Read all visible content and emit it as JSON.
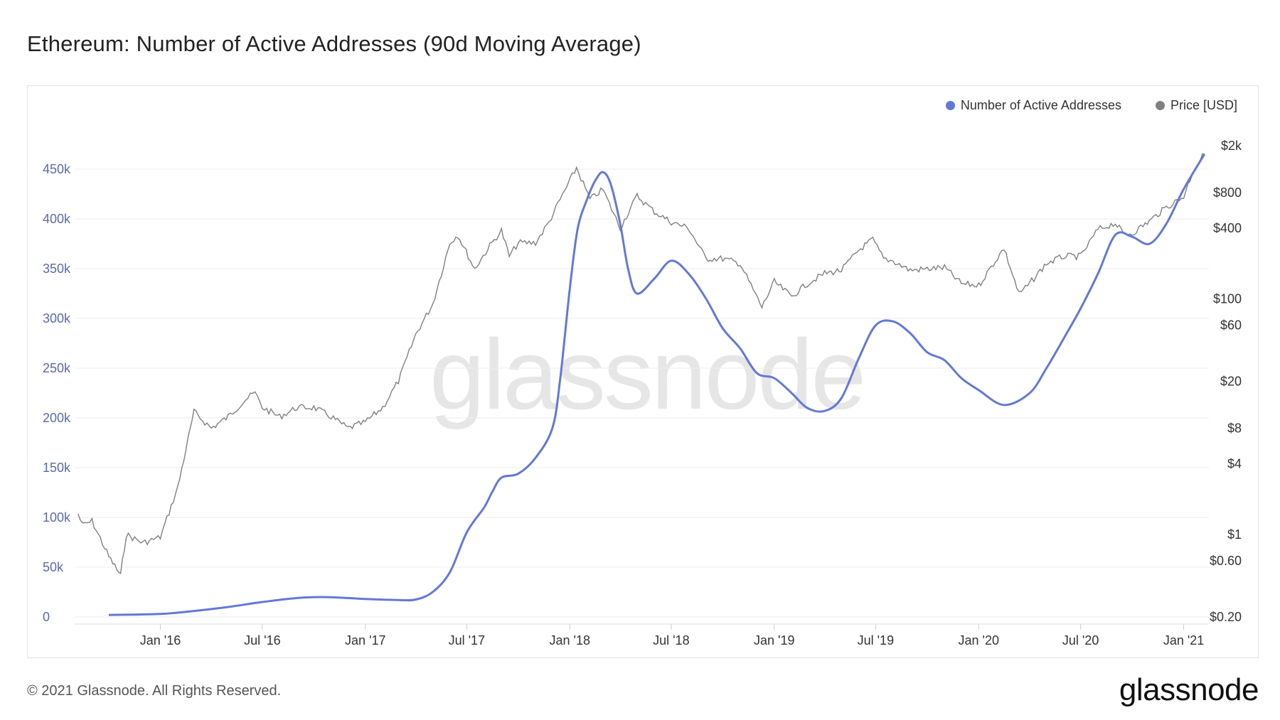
{
  "header": {
    "title": "Ethereum: Number of Active Addresses (90d Moving Average)"
  },
  "footer": {
    "copyright": "© 2021 Glassnode. All Rights Reserved.",
    "brand": "glassnode"
  },
  "watermark": "glassnode",
  "legend": [
    {
      "label": "Number of Active Addresses",
      "color": "#6378d6"
    },
    {
      "label": "Price [USD]",
      "color": "#808080"
    }
  ],
  "chart_data": {
    "type": "line",
    "xlim": [
      "2015-08-01",
      "2021-02-15"
    ],
    "x_ticks": [
      {
        "date": "2016-01-01",
        "label": "Jan '16"
      },
      {
        "date": "2016-07-01",
        "label": "Jul '16"
      },
      {
        "date": "2017-01-01",
        "label": "Jan '17"
      },
      {
        "date": "2017-07-01",
        "label": "Jul '17"
      },
      {
        "date": "2018-01-01",
        "label": "Jan '18"
      },
      {
        "date": "2018-07-01",
        "label": "Jul '18"
      },
      {
        "date": "2019-01-01",
        "label": "Jan '19"
      },
      {
        "date": "2019-07-01",
        "label": "Jul '19"
      },
      {
        "date": "2020-01-01",
        "label": "Jan '20"
      },
      {
        "date": "2020-07-01",
        "label": "Jul '20"
      },
      {
        "date": "2021-01-01",
        "label": "Jan '21"
      }
    ],
    "y_left": {
      "ylim": [
        0,
        450000
      ],
      "ticks": [
        {
          "value": 0,
          "label": "0"
        },
        {
          "value": 50000,
          "label": "50k"
        },
        {
          "value": 100000,
          "label": "100k"
        },
        {
          "value": 150000,
          "label": "150k"
        },
        {
          "value": 200000,
          "label": "200k"
        },
        {
          "value": 250000,
          "label": "250k"
        },
        {
          "value": 300000,
          "label": "300k"
        },
        {
          "value": 350000,
          "label": "350k"
        },
        {
          "value": 400000,
          "label": "400k"
        },
        {
          "value": 450000,
          "label": "450k"
        }
      ]
    },
    "y_right": {
      "scale": "log",
      "ylim": [
        0.2,
        2000
      ],
      "ticks": [
        {
          "value": 0.2,
          "label": "$0.20"
        },
        {
          "value": 0.6,
          "label": "$0.60"
        },
        {
          "value": 1,
          "label": "$1"
        },
        {
          "value": 4,
          "label": "$4"
        },
        {
          "value": 8,
          "label": "$8"
        },
        {
          "value": 20,
          "label": "$20"
        },
        {
          "value": 60,
          "label": "$60"
        },
        {
          "value": 100,
          "label": "$100"
        },
        {
          "value": 400,
          "label": "$400"
        },
        {
          "value": 800,
          "label": "$800"
        },
        {
          "value": 2000,
          "label": "$2k"
        }
      ]
    },
    "grid": true,
    "legend_position": "top-right",
    "series": [
      {
        "name": "Number of Active Addresses",
        "axis": "left",
        "color": "#6378d6",
        "points": [
          [
            "2015-10-01",
            2000
          ],
          [
            "2016-01-01",
            3000
          ],
          [
            "2016-03-01",
            6000
          ],
          [
            "2016-05-01",
            10000
          ],
          [
            "2016-07-01",
            15000
          ],
          [
            "2016-09-01",
            19000
          ],
          [
            "2016-10-15",
            20000
          ],
          [
            "2016-12-01",
            19000
          ],
          [
            "2017-01-01",
            18000
          ],
          [
            "2017-03-01",
            17000
          ],
          [
            "2017-04-01",
            17500
          ],
          [
            "2017-05-01",
            25000
          ],
          [
            "2017-06-01",
            45000
          ],
          [
            "2017-07-01",
            85000
          ],
          [
            "2017-08-01",
            110000
          ],
          [
            "2017-08-15",
            125000
          ],
          [
            "2017-09-01",
            140000
          ],
          [
            "2017-10-01",
            144000
          ],
          [
            "2017-11-01",
            160000
          ],
          [
            "2017-12-01",
            190000
          ],
          [
            "2017-12-15",
            240000
          ],
          [
            "2018-01-01",
            330000
          ],
          [
            "2018-01-15",
            390000
          ],
          [
            "2018-02-01",
            420000
          ],
          [
            "2018-02-15",
            438000
          ],
          [
            "2018-03-01",
            447000
          ],
          [
            "2018-03-15",
            435000
          ],
          [
            "2018-04-01",
            395000
          ],
          [
            "2018-04-15",
            350000
          ],
          [
            "2018-05-01",
            325000
          ],
          [
            "2018-06-01",
            340000
          ],
          [
            "2018-07-01",
            358000
          ],
          [
            "2018-08-01",
            345000
          ],
          [
            "2018-09-01",
            320000
          ],
          [
            "2018-10-01",
            290000
          ],
          [
            "2018-11-01",
            270000
          ],
          [
            "2018-12-01",
            245000
          ],
          [
            "2019-01-01",
            240000
          ],
          [
            "2019-02-01",
            225000
          ],
          [
            "2019-03-01",
            210000
          ],
          [
            "2019-04-01",
            207000
          ],
          [
            "2019-05-01",
            220000
          ],
          [
            "2019-06-01",
            260000
          ],
          [
            "2019-07-01",
            293000
          ],
          [
            "2019-08-01",
            297000
          ],
          [
            "2019-09-01",
            285000
          ],
          [
            "2019-10-01",
            266000
          ],
          [
            "2019-11-01",
            258000
          ],
          [
            "2019-12-01",
            240000
          ],
          [
            "2020-01-01",
            228000
          ],
          [
            "2020-02-15",
            213000
          ],
          [
            "2020-04-01",
            225000
          ],
          [
            "2020-05-01",
            250000
          ],
          [
            "2020-06-01",
            280000
          ],
          [
            "2020-07-01",
            310000
          ],
          [
            "2020-08-01",
            345000
          ],
          [
            "2020-09-01",
            384000
          ],
          [
            "2020-10-01",
            382000
          ],
          [
            "2020-11-01",
            375000
          ],
          [
            "2020-12-01",
            395000
          ],
          [
            "2021-01-01",
            430000
          ],
          [
            "2021-02-07",
            465000
          ]
        ]
      },
      {
        "name": "Price [USD]",
        "axis": "right",
        "color": "#808080",
        "points": [
          [
            "2015-08-07",
            1.5
          ],
          [
            "2015-08-15",
            1.2
          ],
          [
            "2015-09-01",
            1.3
          ],
          [
            "2015-10-01",
            0.65
          ],
          [
            "2015-10-22",
            0.45
          ],
          [
            "2015-11-01",
            1.0
          ],
          [
            "2015-12-01",
            0.85
          ],
          [
            "2016-01-01",
            0.95
          ],
          [
            "2016-02-01",
            2.5
          ],
          [
            "2016-03-01",
            11
          ],
          [
            "2016-04-01",
            8
          ],
          [
            "2016-05-01",
            10
          ],
          [
            "2016-06-01",
            14
          ],
          [
            "2016-06-18",
            16
          ],
          [
            "2016-07-01",
            12
          ],
          [
            "2016-08-01",
            10
          ],
          [
            "2016-09-01",
            12
          ],
          [
            "2016-10-01",
            12
          ],
          [
            "2016-11-01",
            10
          ],
          [
            "2016-12-01",
            8
          ],
          [
            "2017-01-01",
            9
          ],
          [
            "2017-02-01",
            12
          ],
          [
            "2017-03-01",
            20
          ],
          [
            "2017-04-01",
            50
          ],
          [
            "2017-05-01",
            90
          ],
          [
            "2017-06-01",
            300
          ],
          [
            "2017-06-15",
            350
          ],
          [
            "2017-07-15",
            180
          ],
          [
            "2017-08-15",
            300
          ],
          [
            "2017-09-01",
            380
          ],
          [
            "2017-09-15",
            230
          ],
          [
            "2017-10-01",
            300
          ],
          [
            "2017-11-01",
            300
          ],
          [
            "2017-11-25",
            450
          ],
          [
            "2017-12-15",
            700
          ],
          [
            "2018-01-13",
            1300
          ],
          [
            "2018-02-06",
            700
          ],
          [
            "2018-03-01",
            850
          ],
          [
            "2018-04-01",
            400
          ],
          [
            "2018-05-01",
            750
          ],
          [
            "2018-06-01",
            550
          ],
          [
            "2018-07-01",
            450
          ],
          [
            "2018-08-01",
            400
          ],
          [
            "2018-09-01",
            220
          ],
          [
            "2018-10-01",
            220
          ],
          [
            "2018-11-01",
            200
          ],
          [
            "2018-12-10",
            85
          ],
          [
            "2019-01-01",
            140
          ],
          [
            "2019-02-01",
            105
          ],
          [
            "2019-03-01",
            135
          ],
          [
            "2019-04-01",
            165
          ],
          [
            "2019-05-01",
            175
          ],
          [
            "2019-06-01",
            260
          ],
          [
            "2019-06-26",
            320
          ],
          [
            "2019-07-15",
            220
          ],
          [
            "2019-08-01",
            210
          ],
          [
            "2019-09-01",
            175
          ],
          [
            "2019-10-01",
            180
          ],
          [
            "2019-11-01",
            185
          ],
          [
            "2019-12-01",
            135
          ],
          [
            "2020-01-01",
            130
          ],
          [
            "2020-02-15",
            270
          ],
          [
            "2020-03-13",
            110
          ],
          [
            "2020-04-01",
            135
          ],
          [
            "2020-05-01",
            200
          ],
          [
            "2020-06-01",
            230
          ],
          [
            "2020-07-01",
            230
          ],
          [
            "2020-08-01",
            390
          ],
          [
            "2020-09-01",
            440
          ],
          [
            "2020-09-15",
            360
          ],
          [
            "2020-10-01",
            360
          ],
          [
            "2020-11-01",
            460
          ],
          [
            "2020-12-01",
            600
          ],
          [
            "2021-01-01",
            740
          ],
          [
            "2021-01-20",
            1300
          ],
          [
            "2021-02-07",
            1700
          ]
        ]
      }
    ]
  }
}
